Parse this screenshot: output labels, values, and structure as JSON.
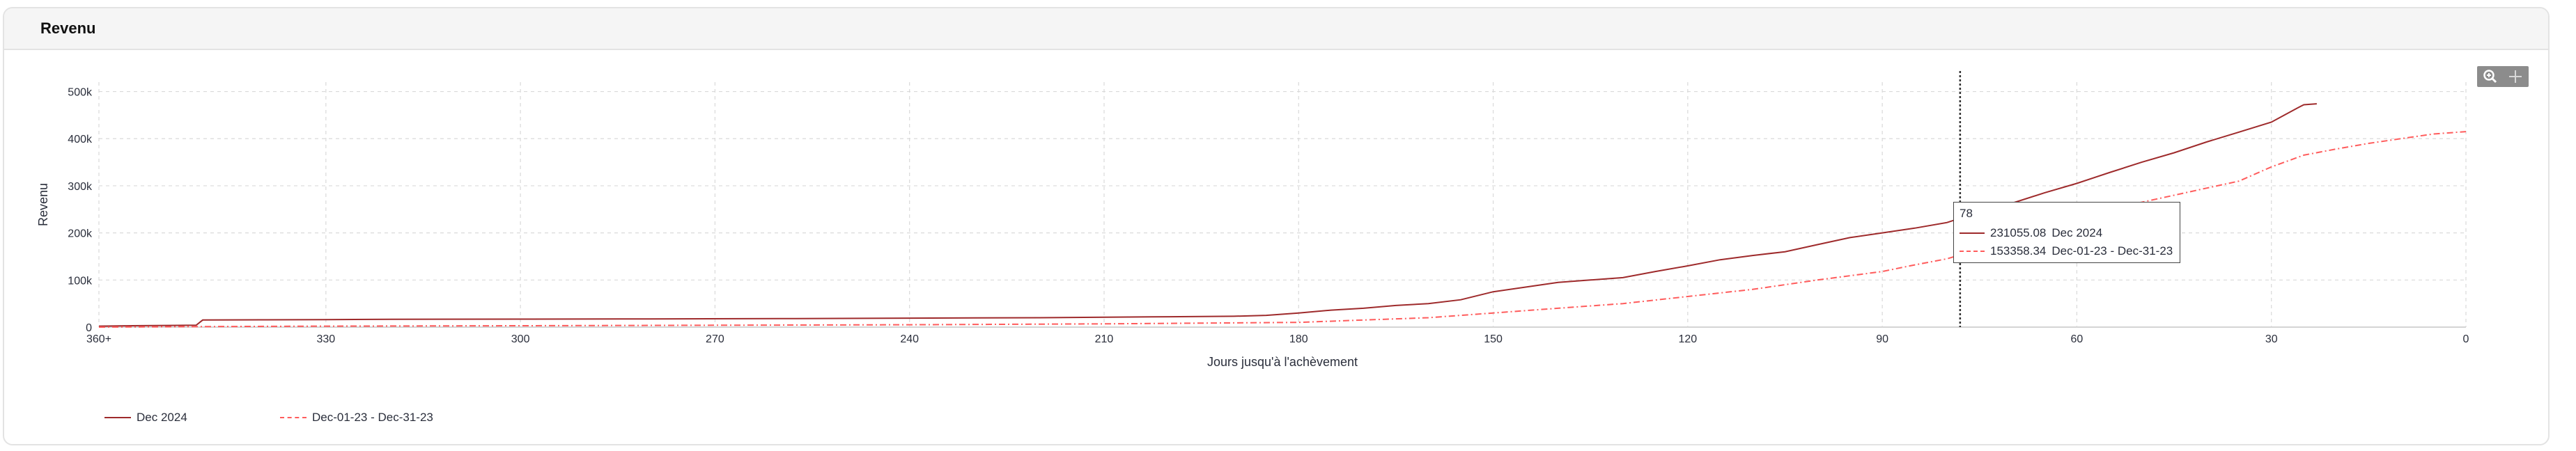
{
  "panel": {
    "title": "Revenu"
  },
  "toolbar": {
    "zoom_icon": "zoom-in-icon",
    "pan_icon": "pan-crosshair-icon"
  },
  "tooltip": {
    "x_label": "78",
    "rows": [
      {
        "value": "231055.08",
        "series": "Dec 2024"
      },
      {
        "value": "153358.34",
        "series": "Dec-01-23 - Dec-31-23"
      }
    ]
  },
  "colors": {
    "series1": "#9e2a2b",
    "series2": "#ff5c5c",
    "grid": "#d9d9d9",
    "axis_text": "#2a2e3b",
    "crosshair": "#333333"
  },
  "chart_data": {
    "type": "line",
    "title": "",
    "xlabel": "Jours jusqu'à l'achèvement",
    "ylabel": "Revenu",
    "x_reversed": true,
    "xlim": [
      365,
      0
    ],
    "ylim": [
      0,
      520000
    ],
    "x_ticks": [
      365,
      330,
      300,
      270,
      240,
      210,
      180,
      150,
      120,
      90,
      60,
      30,
      0
    ],
    "x_tick_labels": [
      "360+",
      "330",
      "300",
      "270",
      "240",
      "210",
      "180",
      "150",
      "120",
      "90",
      "60",
      "30",
      "0"
    ],
    "y_ticks": [
      0,
      100000,
      200000,
      300000,
      400000,
      500000
    ],
    "y_tick_labels": [
      "0",
      "100k",
      "200k",
      "300k",
      "400k",
      "500k"
    ],
    "grid": true,
    "legend_position": "bottom-left",
    "crosshair_x": 78,
    "series": [
      {
        "name": "Dec 2024",
        "color": "#9e2a2b",
        "dash": "solid",
        "x": [
          365,
          360,
          350,
          349,
          340,
          330,
          320,
          300,
          280,
          260,
          240,
          220,
          200,
          190,
          185,
          180,
          175,
          170,
          165,
          160,
          155,
          150,
          145,
          140,
          135,
          130,
          125,
          120,
          115,
          110,
          105,
          100,
          95,
          90,
          85,
          80,
          78,
          75,
          70,
          65,
          60,
          55,
          50,
          45,
          40,
          35,
          30,
          28,
          26,
          25,
          23
        ],
        "y": [
          2000,
          3000,
          4000,
          15000,
          15500,
          16000,
          16500,
          17000,
          17500,
          18000,
          19000,
          20000,
          22000,
          23000,
          25000,
          30000,
          36000,
          40000,
          46000,
          50000,
          58000,
          75000,
          85000,
          95000,
          100000,
          105000,
          118000,
          130000,
          143000,
          152000,
          160000,
          175000,
          190000,
          200000,
          210000,
          222000,
          231055,
          240000,
          263000,
          285000,
          305000,
          328000,
          350000,
          370000,
          393000,
          414000,
          435000,
          450000,
          465000,
          472000,
          474000
        ]
      },
      {
        "name": "Dec-01-23 - Dec-31-23",
        "color": "#ff5c5c",
        "dash": "dashdot",
        "x": [
          365,
          350,
          330,
          300,
          270,
          240,
          210,
          200,
          180,
          170,
          160,
          150,
          140,
          130,
          120,
          110,
          100,
          90,
          85,
          80,
          78,
          75,
          70,
          65,
          60,
          55,
          50,
          45,
          40,
          35,
          30,
          25,
          20,
          15,
          10,
          5,
          0
        ],
        "y": [
          0,
          1000,
          2000,
          3000,
          4000,
          5000,
          7000,
          8000,
          10000,
          15000,
          20000,
          30000,
          40000,
          50000,
          65000,
          80000,
          100000,
          118000,
          132000,
          145000,
          153358,
          170000,
          190000,
          210000,
          230000,
          250000,
          265000,
          280000,
          295000,
          310000,
          340000,
          365000,
          378000,
          390000,
          400000,
          410000,
          415000
        ]
      }
    ]
  }
}
